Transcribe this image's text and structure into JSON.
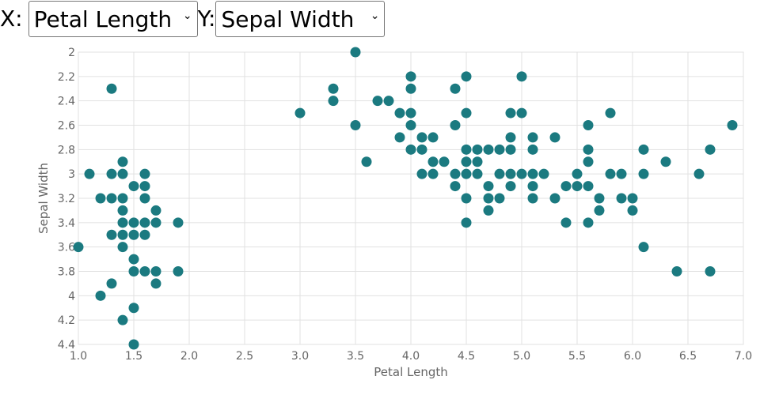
{
  "controls": {
    "x_prefix": "X:",
    "x_selected": "Petal Length",
    "y_prefix": "Y:",
    "y_selected": "Sepal Width"
  },
  "colors": {
    "point": "#1b7a80",
    "grid": "#e1e1e1",
    "tick_text": "#666666",
    "axis_title": "#666666"
  },
  "chart_data": {
    "type": "scatter",
    "xlabel": "Petal Length",
    "ylabel": "Sepal Width",
    "xlim": [
      1.0,
      7.0
    ],
    "ylim": [
      2.0,
      4.4
    ],
    "y_inverted": true,
    "grid": true,
    "x_ticks": [
      "1.0",
      "1.5",
      "2.0",
      "2.5",
      "3.0",
      "3.5",
      "4.0",
      "4.5",
      "5.0",
      "5.5",
      "6.0",
      "6.5",
      "7.0"
    ],
    "y_ticks": [
      "2",
      "2.2",
      "2.4",
      "2.6",
      "2.8",
      "3",
      "3.2",
      "3.4",
      "3.6",
      "3.8",
      "4",
      "4.2",
      "4.4"
    ],
    "points": [
      [
        1.0,
        3.6
      ],
      [
        1.1,
        3.0
      ],
      [
        1.2,
        3.2
      ],
      [
        1.2,
        4.0
      ],
      [
        1.3,
        2.3
      ],
      [
        1.3,
        3.0
      ],
      [
        1.3,
        3.2
      ],
      [
        1.3,
        3.5
      ],
      [
        1.3,
        3.9
      ],
      [
        1.4,
        2.9
      ],
      [
        1.4,
        3.0
      ],
      [
        1.4,
        3.2
      ],
      [
        1.4,
        3.3
      ],
      [
        1.4,
        3.4
      ],
      [
        1.4,
        3.5
      ],
      [
        1.4,
        3.6
      ],
      [
        1.4,
        4.2
      ],
      [
        1.5,
        3.1
      ],
      [
        1.5,
        3.4
      ],
      [
        1.5,
        3.5
      ],
      [
        1.5,
        3.7
      ],
      [
        1.5,
        3.8
      ],
      [
        1.5,
        4.1
      ],
      [
        1.5,
        4.4
      ],
      [
        1.6,
        3.0
      ],
      [
        1.6,
        3.1
      ],
      [
        1.6,
        3.2
      ],
      [
        1.6,
        3.4
      ],
      [
        1.6,
        3.5
      ],
      [
        1.6,
        3.8
      ],
      [
        1.7,
        3.3
      ],
      [
        1.7,
        3.4
      ],
      [
        1.7,
        3.8
      ],
      [
        1.7,
        3.9
      ],
      [
        1.9,
        3.4
      ],
      [
        1.9,
        3.8
      ],
      [
        3.0,
        2.5
      ],
      [
        3.3,
        2.3
      ],
      [
        3.3,
        2.4
      ],
      [
        3.5,
        2.0
      ],
      [
        3.5,
        2.6
      ],
      [
        3.6,
        2.9
      ],
      [
        3.7,
        2.4
      ],
      [
        3.8,
        2.4
      ],
      [
        3.9,
        2.5
      ],
      [
        3.9,
        2.7
      ],
      [
        4.0,
        2.2
      ],
      [
        4.0,
        2.3
      ],
      [
        4.0,
        2.5
      ],
      [
        4.0,
        2.6
      ],
      [
        4.0,
        2.8
      ],
      [
        4.1,
        2.7
      ],
      [
        4.1,
        2.8
      ],
      [
        4.1,
        3.0
      ],
      [
        4.2,
        2.7
      ],
      [
        4.2,
        2.9
      ],
      [
        4.2,
        3.0
      ],
      [
        4.3,
        2.9
      ],
      [
        4.4,
        2.3
      ],
      [
        4.4,
        2.6
      ],
      [
        4.4,
        3.0
      ],
      [
        4.4,
        3.1
      ],
      [
        4.5,
        2.2
      ],
      [
        4.5,
        2.5
      ],
      [
        4.5,
        2.8
      ],
      [
        4.5,
        2.9
      ],
      [
        4.5,
        3.0
      ],
      [
        4.5,
        3.2
      ],
      [
        4.5,
        3.4
      ],
      [
        4.6,
        2.8
      ],
      [
        4.6,
        2.9
      ],
      [
        4.6,
        3.0
      ],
      [
        4.7,
        2.8
      ],
      [
        4.7,
        3.1
      ],
      [
        4.7,
        3.2
      ],
      [
        4.7,
        3.3
      ],
      [
        4.8,
        2.8
      ],
      [
        4.8,
        3.0
      ],
      [
        4.8,
        3.2
      ],
      [
        4.9,
        2.5
      ],
      [
        4.9,
        2.7
      ],
      [
        4.9,
        2.8
      ],
      [
        4.9,
        3.0
      ],
      [
        4.9,
        3.1
      ],
      [
        5.0,
        2.2
      ],
      [
        5.0,
        2.5
      ],
      [
        5.0,
        3.0
      ],
      [
        5.1,
        2.7
      ],
      [
        5.1,
        2.8
      ],
      [
        5.1,
        3.0
      ],
      [
        5.1,
        3.1
      ],
      [
        5.1,
        3.2
      ],
      [
        5.2,
        3.0
      ],
      [
        5.3,
        2.7
      ],
      [
        5.3,
        3.2
      ],
      [
        5.4,
        3.1
      ],
      [
        5.4,
        3.4
      ],
      [
        5.5,
        3.0
      ],
      [
        5.5,
        3.1
      ],
      [
        5.6,
        2.6
      ],
      [
        5.6,
        2.8
      ],
      [
        5.6,
        2.9
      ],
      [
        5.6,
        3.1
      ],
      [
        5.6,
        3.4
      ],
      [
        5.7,
        3.2
      ],
      [
        5.7,
        3.3
      ],
      [
        5.8,
        2.5
      ],
      [
        5.8,
        3.0
      ],
      [
        5.9,
        3.0
      ],
      [
        5.9,
        3.2
      ],
      [
        6.0,
        3.2
      ],
      [
        6.0,
        3.3
      ],
      [
        6.1,
        2.8
      ],
      [
        6.1,
        3.0
      ],
      [
        6.1,
        3.6
      ],
      [
        6.3,
        2.9
      ],
      [
        6.4,
        3.8
      ],
      [
        6.6,
        3.0
      ],
      [
        6.7,
        2.8
      ],
      [
        6.7,
        3.8
      ],
      [
        6.9,
        2.6
      ]
    ]
  }
}
